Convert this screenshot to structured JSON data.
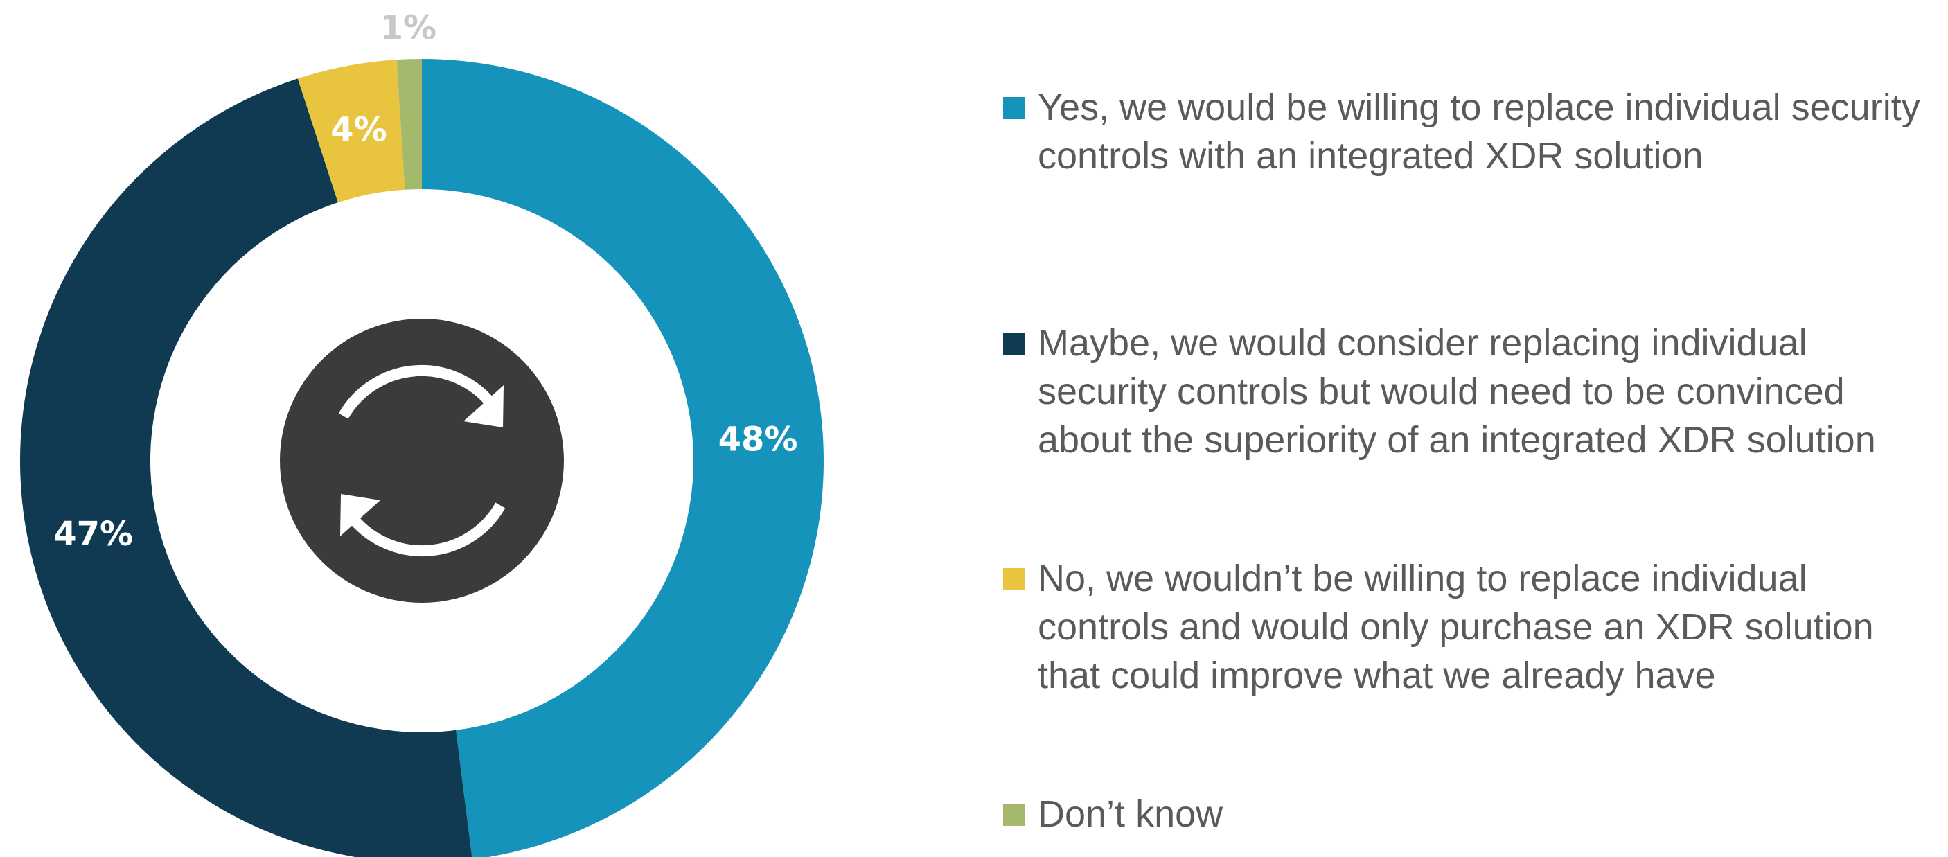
{
  "chart_data": {
    "type": "pie",
    "variant": "donut",
    "slices": [
      {
        "label": "Yes, we would be willing to replace individual security controls with an integrated XDR solution",
        "value": 48,
        "value_label": "48%",
        "color": "#1593bb",
        "label_color": "#ffffff"
      },
      {
        "label": "Maybe, we would consider replacing individual security controls but would need to be convinced about the superiority of an integrated XDR solution",
        "value": 47,
        "value_label": "47%",
        "color": "#0f3a52",
        "label_color": "#ffffff"
      },
      {
        "label": "No, we wouldn’t be willing to replace individual controls and would only purchase an XDR solution that could improve what we already have",
        "value": 4,
        "value_label": "4%",
        "color": "#e9c53f",
        "label_color": "#ffffff"
      },
      {
        "label": "Don’t know",
        "value": 1,
        "value_label": "1%",
        "color": "#a4b96b",
        "label_color": "#c8c8c8"
      }
    ],
    "start_angle_deg": 0,
    "direction": "clockwise",
    "center_icon": "refresh-cycle-icon",
    "center_icon_colors": {
      "disc": "#3b3b3b",
      "arrows": "#ffffff"
    },
    "legend_position": "right",
    "legend_text_color": "#5a5a5a"
  }
}
